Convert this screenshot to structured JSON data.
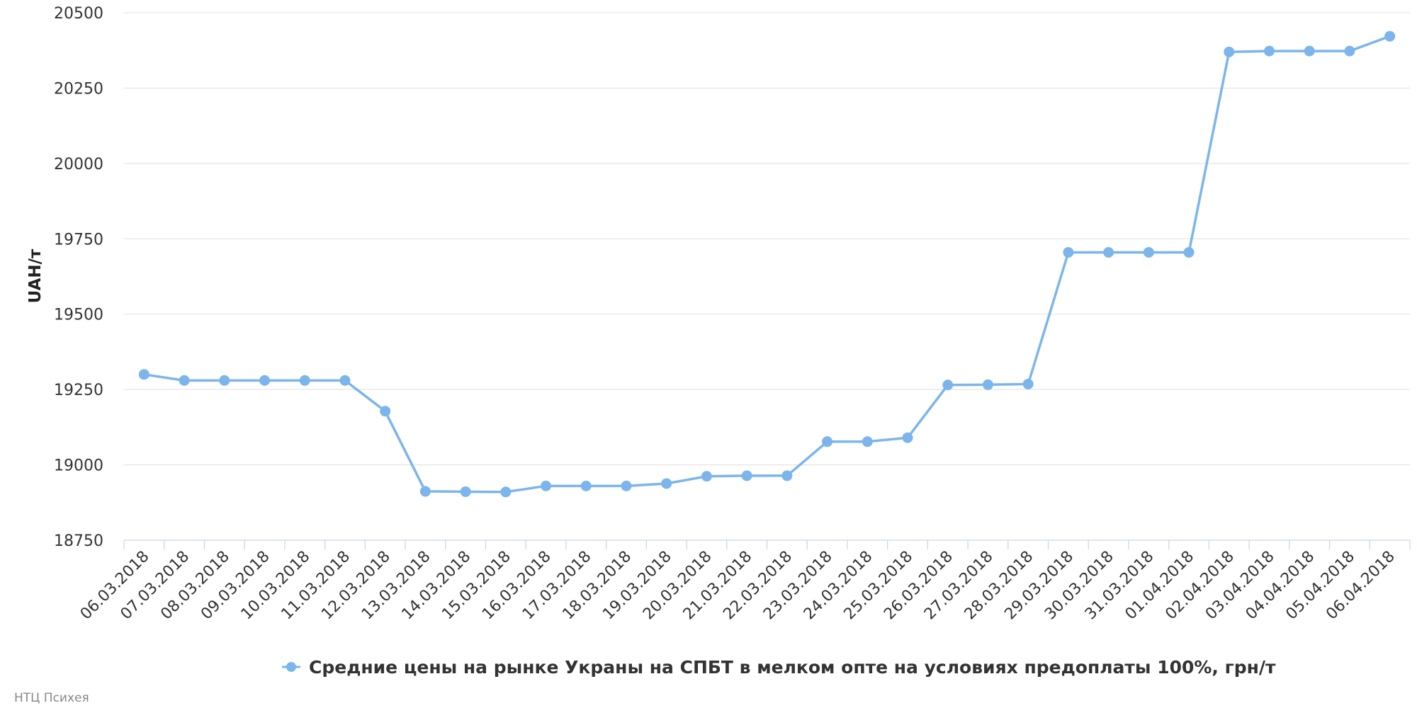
{
  "chart_data": {
    "type": "line",
    "title": "",
    "xlabel": "",
    "ylabel": "UAH/т",
    "ylim": [
      18750,
      20500
    ],
    "yticks": [
      18750,
      19000,
      19250,
      19500,
      19750,
      20000,
      20250,
      20500
    ],
    "grid": true,
    "legend_position": "bottom-center",
    "categories": [
      "06.03.2018",
      "07.03.2018",
      "08.03.2018",
      "09.03.2018",
      "10.03.2018",
      "11.03.2018",
      "12.03.2018",
      "13.03.2018",
      "14.03.2018",
      "15.03.2018",
      "16.03.2018",
      "17.03.2018",
      "18.03.2018",
      "19.03.2018",
      "20.03.2018",
      "21.03.2018",
      "22.03.2018",
      "23.03.2018",
      "24.03.2018",
      "25.03.2018",
      "26.03.2018",
      "27.03.2018",
      "28.03.2018",
      "29.03.2018",
      "30.03.2018",
      "31.03.2018",
      "01.04.2018",
      "02.04.2018",
      "03.04.2018",
      "04.04.2018",
      "05.04.2018",
      "06.04.2018"
    ],
    "series": [
      {
        "name": "Средние цены на рынке Украны на СПБТ в мелком опте на условиях предоплаты 100%, грн/т",
        "color": "#7cb5ec",
        "values": [
          19300,
          19280,
          19280,
          19280,
          19280,
          19280,
          19178,
          18912,
          18911,
          18910,
          18930,
          18930,
          18930,
          18938,
          18962,
          18964,
          18964,
          19077,
          19077,
          19090,
          19265,
          19266,
          19268,
          19705,
          19705,
          19705,
          19705,
          20370,
          20373,
          20373,
          20373,
          20422
        ]
      }
    ]
  },
  "credit": "НТЦ Психея"
}
